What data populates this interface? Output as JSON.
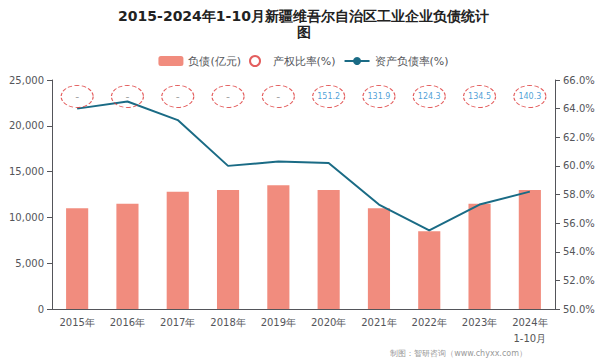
{
  "chart_data": {
    "type": "bar",
    "title": "2015-2024年1-10月新疆维吾尔自治区工业企业负债统计",
    "subtitle": "图",
    "categories": [
      "2015年",
      "2016年",
      "2017年",
      "2018年",
      "2019年",
      "2020年",
      "2021年",
      "2022年",
      "2023年",
      "2024年"
    ],
    "series": [
      {
        "name": "负债(亿元)",
        "type": "bar",
        "color": "#F08070",
        "values": [
          11000,
          11500,
          12800,
          13000,
          13500,
          13000,
          11000,
          8500,
          11500,
          13000
        ]
      },
      {
        "name": "产权比率(%)",
        "type": "scatter",
        "color": "#DC3535",
        "marker": "circle",
        "line_style": "dashed",
        "values": [
          null,
          null,
          null,
          null,
          null,
          151.2,
          131.9,
          124.3,
          134.5,
          140.3
        ],
        "value_labels": [
          "-",
          "-",
          "-",
          "-",
          "-",
          "151.2",
          "131.9",
          "124.3",
          "134.5",
          "140.3"
        ]
      },
      {
        "name": "资产负债率(%)",
        "type": "line",
        "axis": "y2",
        "color": "#1A6B85",
        "values": [
          64.0,
          64.5,
          63.2,
          60.0,
          60.3,
          60.2,
          57.3,
          55.5,
          57.3,
          58.2
        ]
      }
    ],
    "ylim": [
      0,
      25000
    ],
    "yticks": [
      0,
      {
        "value": 5000,
        "label": "5,000"
      },
      {
        "value": 10000,
        "label": "10,000"
      },
      {
        "value": 15000,
        "label": "15,000"
      },
      {
        "value": 20000,
        "label": "20,000"
      },
      {
        "value": 25000,
        "label": "25,000"
      }
    ],
    "y2lim": [
      50.0,
      66.0
    ],
    "y2ticks": [
      {
        "value": 50.0,
        "label": "50.0%"
      },
      {
        "value": 52.0,
        "label": "52.0%"
      },
      {
        "value": 54.0,
        "label": "54.0%"
      },
      {
        "value": 56.0,
        "label": "56.0%"
      },
      {
        "value": 58.0,
        "label": "58.0%"
      },
      {
        "value": 60.0,
        "label": "60.0%"
      },
      {
        "value": 62.0,
        "label": "62.0%"
      },
      {
        "value": 64.0,
        "label": "64.0%"
      },
      {
        "value": 66.0,
        "label": "66.0%"
      }
    ],
    "annotations": [
      "1-10月",
      "制图：智研咨询（www.chyxx.com）"
    ],
    "legend": "top",
    "grid": false
  }
}
